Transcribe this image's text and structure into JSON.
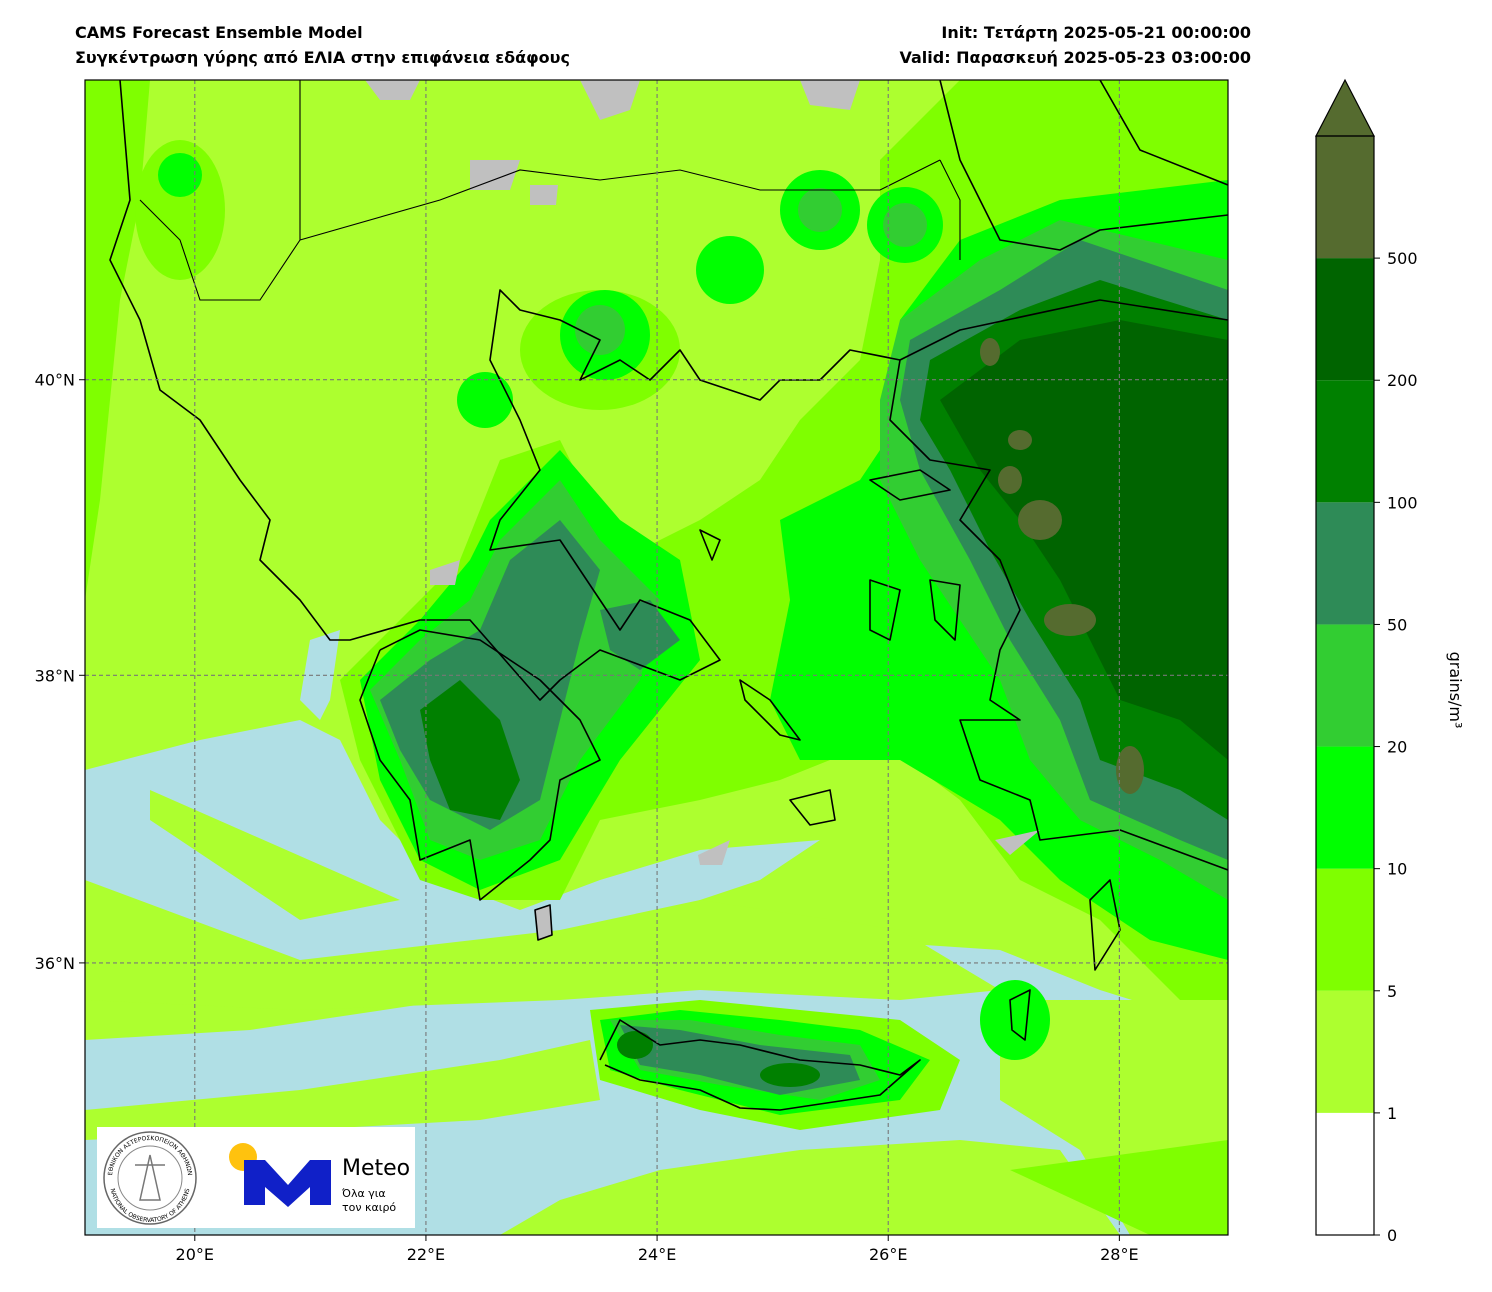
{
  "header": {
    "title": "CAMS Forecast Ensemble Model",
    "subtitle": "Συγκέντρωση γύρης από ΕΛΙΑ στην επιφάνεια εδάφους",
    "init": "Init: Τετάρτη 2025-05-21 00:00:00",
    "valid": "Valid: Παρασκευή 2025-05-23 03:00:00"
  },
  "map": {
    "type": "map",
    "projection": "mercator",
    "xlim": [
      19.05,
      28.94
    ],
    "ylim": [
      34.06,
      41.97
    ],
    "xticks": [
      {
        "value": 20,
        "label": "20°E"
      },
      {
        "value": 22,
        "label": "22°E"
      },
      {
        "value": 24,
        "label": "24°E"
      },
      {
        "value": 26,
        "label": "26°E"
      },
      {
        "value": 28,
        "label": "28°E"
      }
    ],
    "yticks": [
      {
        "value": 36,
        "label": "36°N"
      },
      {
        "value": 38,
        "label": "38°N"
      },
      {
        "value": 40,
        "label": "40°N"
      }
    ],
    "grid": true
  },
  "colorbar": {
    "label": "grains/m³",
    "levels": [
      0,
      1,
      5,
      10,
      20,
      50,
      100,
      200,
      500
    ],
    "colors": [
      "#ffffff",
      "#adff2f",
      "#7fff00",
      "#00ff00",
      "#32cd32",
      "#2e8b57",
      "#008000",
      "#006400",
      "#556b2f"
    ],
    "extend": "max"
  },
  "logos": {
    "seal_top": "ΕΘΝΙΚΟΝ ΑΣΤΕΡΟΣΚΟΠΕΙΟΝ ΑΘΗΝΩΝ",
    "seal_bottom": "NATIONAL OBSERVATORY OF ATHENS",
    "brand": "Meteo",
    "slogan_1": "Όλα για",
    "slogan_2": "τον καιρό"
  }
}
